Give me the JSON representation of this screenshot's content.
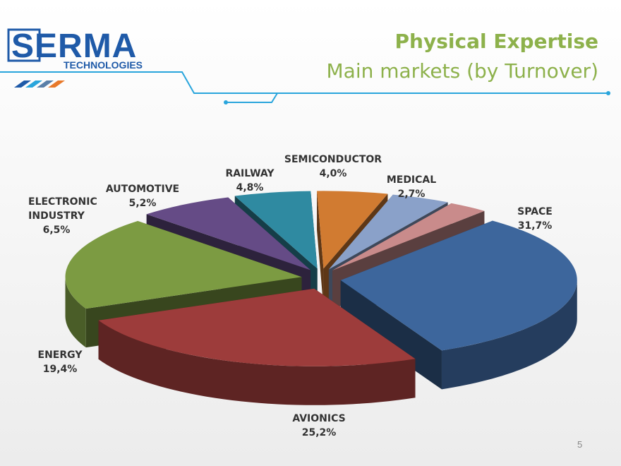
{
  "logo": {
    "name": "SERMA",
    "tagline": "TECHNOLOGIES"
  },
  "page_number": "5",
  "chart_data": {
    "type": "pie",
    "title": "Physical Expertise",
    "subtitle": "Main markets (by Turnover)",
    "categories": [
      "SPACE",
      "AVIONICS",
      "ENERGY",
      "ELECTRONIC INDUSTRY",
      "AUTOMOTIVE",
      "RAILWAY",
      "SEMICONDUCTOR",
      "MEDICAL"
    ],
    "values": [
      31.7,
      25.2,
      19.4,
      6.5,
      5.2,
      4.8,
      4.0,
      2.7
    ],
    "value_labels": [
      "31,7%",
      "25,2%",
      "19,4%",
      "6,5%",
      "5,2%",
      "4,8%",
      "4,0%",
      "2,7%"
    ],
    "colors": [
      "#3d669c",
      "#9d3c3b",
      "#7c9b42",
      "#654b86",
      "#2f8aa1",
      "#d17b31",
      "#8aa1c9",
      "#c98b8b"
    ]
  }
}
